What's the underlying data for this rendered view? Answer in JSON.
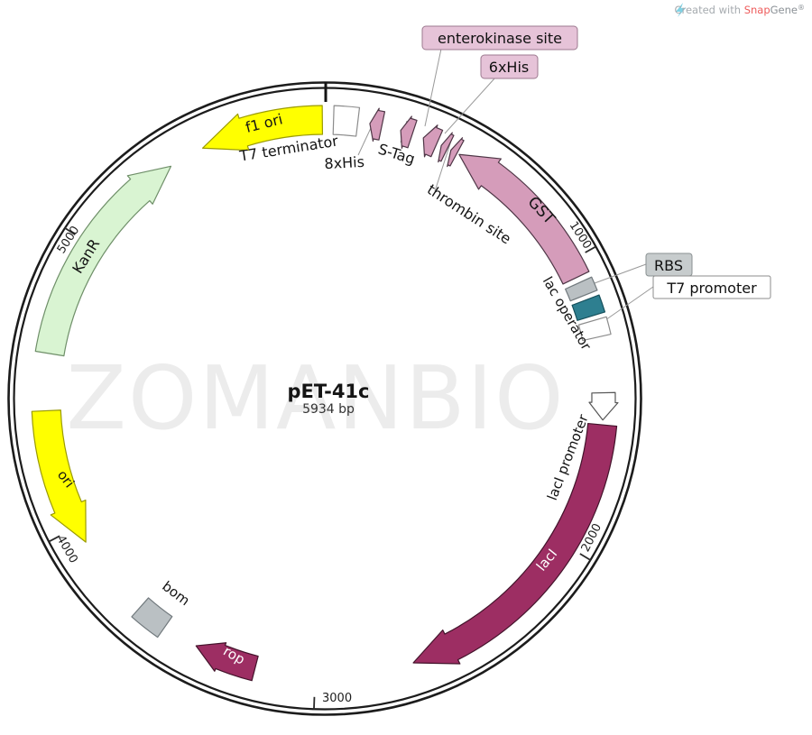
{
  "plasmid": {
    "name": "pET-41c",
    "size": "5934 bp"
  },
  "watermark": "ZOMANBIO",
  "ticks": [
    "1000",
    "2000",
    "3000",
    "4000",
    "5000"
  ],
  "features": {
    "f1_ori": "f1 ori",
    "t7_terminator": "T7 terminator",
    "his8": "8xHis",
    "s_tag": "S-Tag",
    "enterokinase": "enterokinase site",
    "his6": "6xHis",
    "thrombin": "thrombin site",
    "gst": "GST",
    "rbs": "RBS",
    "lac_operator": "lac operator",
    "t7_promoter": "T7 promoter",
    "laci_promoter": "lacI promoter",
    "laci": "lacI",
    "rop": "rop",
    "bom": "bom",
    "ori": "ori",
    "kanr": "KanR"
  },
  "credit": {
    "prefix": "Created with ",
    "snap": "Snap",
    "gene": "Gene",
    "mark": "®"
  },
  "colors": {
    "yellow": "#FFFF00",
    "yellow_outline": "#9B9B00",
    "pink": "#D59CBA",
    "pink_outline": "#4E3646",
    "maroon": "#9D2E63",
    "maroon_outline": "#43132B",
    "green": "#D9F4D2",
    "green_outline": "#6F8F69",
    "gray": "#BAC0C3",
    "gray_outline": "#71797D",
    "teal": "#2E7F90",
    "teal_outline": "#16505C",
    "white": "#FFFFFF",
    "white_outline": "#8C8C8C",
    "ring": "#1C1C1C",
    "watermark": "#ECECEC",
    "label_pink_bg": "#E6C3D8",
    "label_pink_border": "#9C7A8F",
    "label_gray_bg": "#C7CCCD",
    "label_gray_border": "#8A9192",
    "label_white_bg": "#FFFFFF",
    "label_white_border": "#8C8C8C",
    "callout_line": "#999999",
    "snap_red": "#EE5C5C",
    "gene_gray": "#8B9196",
    "credit_gray": "#A6ABAF",
    "bolt_blue": "#7FD2E4"
  }
}
